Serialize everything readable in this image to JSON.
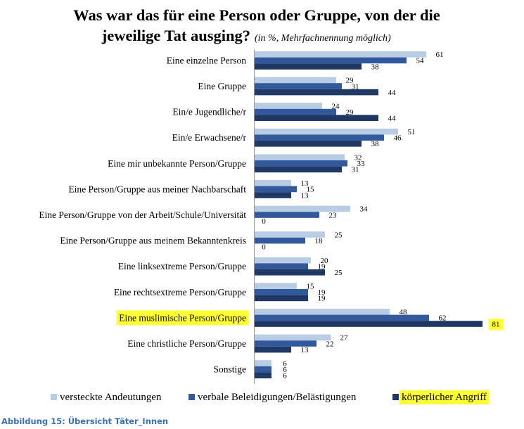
{
  "chart_data": {
    "type": "bar",
    "orientation": "horizontal",
    "title_line1": "Was war das für eine Person oder Gruppe, von der die",
    "title_line2": "jeweilige Tat ausging?",
    "title_note": "(in %, Mehrfachnennung möglich)",
    "categories": [
      "Eine einzelne Person",
      "Eine Gruppe",
      "Ein/e Jugendliche/r",
      "Ein/e Erwachsene/r",
      "Eine mir unbekannte Person/Gruppe",
      "Eine Person/Gruppe aus meiner Nachbarschaft",
      "Eine Person/Gruppe von der Arbeit/Schule/Universität",
      "Eine Person/Gruppe aus meinem Bekanntenkreis",
      "Eine linksextreme Person/Gruppe",
      "Eine rechtsextreme Person/Gruppe",
      "Eine muslimische Person/Gruppe",
      "Eine christliche Person/Gruppe",
      "Sonstige"
    ],
    "highlighted_category": "Eine muslimische Person/Gruppe",
    "series": [
      {
        "name": "versteckte Andeutungen",
        "color": "#b8cce4",
        "values": [
          61,
          29,
          24,
          51,
          32,
          13,
          34,
          25,
          20,
          15,
          48,
          27,
          6
        ]
      },
      {
        "name": "verbale Beleidigungen/Belästigungen",
        "color": "#31599c",
        "values": [
          54,
          31,
          29,
          46,
          33,
          15,
          23,
          18,
          19,
          19,
          62,
          22,
          6
        ]
      },
      {
        "name": "körperlicher Angriff",
        "color": "#1f3864",
        "values": [
          38,
          44,
          44,
          38,
          31,
          13,
          0,
          0,
          25,
          19,
          81,
          13,
          6
        ]
      }
    ],
    "highlighted_series": "körperlicher Angriff",
    "highlight_color": "#ffff33",
    "xlim": [
      0,
      100
    ],
    "grid": false,
    "legend_position": "bottom"
  },
  "caption": "Abbildung 15: Übersicht Täter_Innen"
}
